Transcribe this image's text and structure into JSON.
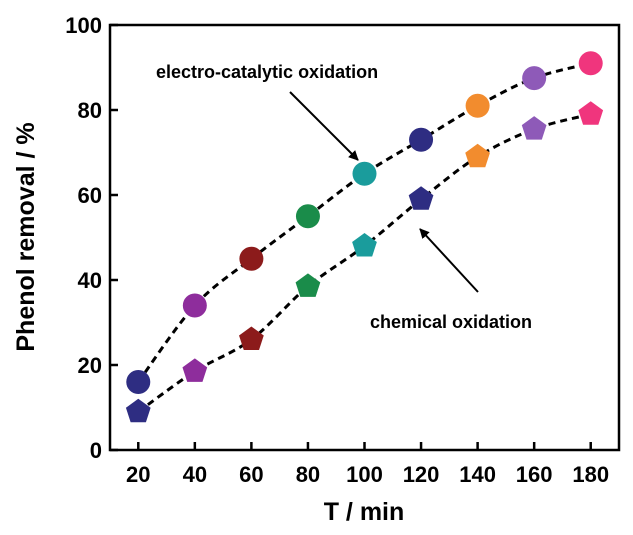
{
  "chart_data": {
    "type": "scatter",
    "title": "",
    "xlabel": "T / min",
    "ylabel": "Phenol removal / %",
    "xlim": [
      10,
      190
    ],
    "ylim": [
      0,
      100
    ],
    "xticks": [
      20,
      40,
      60,
      80,
      100,
      120,
      140,
      160,
      180
    ],
    "yticks": [
      0,
      20,
      40,
      60,
      80,
      100
    ],
    "grid": false,
    "legend": "none",
    "x": [
      20,
      40,
      60,
      80,
      100,
      120,
      140,
      160,
      180
    ],
    "series": [
      {
        "marker": "circle",
        "line_style": "dashed",
        "values": [
          16,
          34,
          45,
          55,
          65,
          73,
          81,
          87.5,
          91
        ],
        "colors": [
          "#2e2d82",
          "#8e2d9c",
          "#8c1b1b",
          "#1a8c4a",
          "#1a9c9c",
          "#2e2d82",
          "#f28c2e",
          "#8e5ab8",
          "#f0357d"
        ]
      },
      {
        "marker": "pentagon",
        "line_style": "dashed",
        "values": [
          9,
          18.5,
          26,
          38.5,
          48,
          59,
          69,
          75.5,
          79
        ],
        "colors": [
          "#2e2d82",
          "#8e2d9c",
          "#8c1b1b",
          "#1a8c4a",
          "#1a9c9c",
          "#2e2d82",
          "#f28c2e",
          "#8e5ab8",
          "#f0357d"
        ]
      }
    ],
    "annotations": [
      {
        "text": "electro-catalytic oxidation",
        "points_to": "circle series at x=100"
      },
      {
        "text": "chemical oxidation",
        "points_to": "pentagon series at x=120"
      }
    ]
  }
}
